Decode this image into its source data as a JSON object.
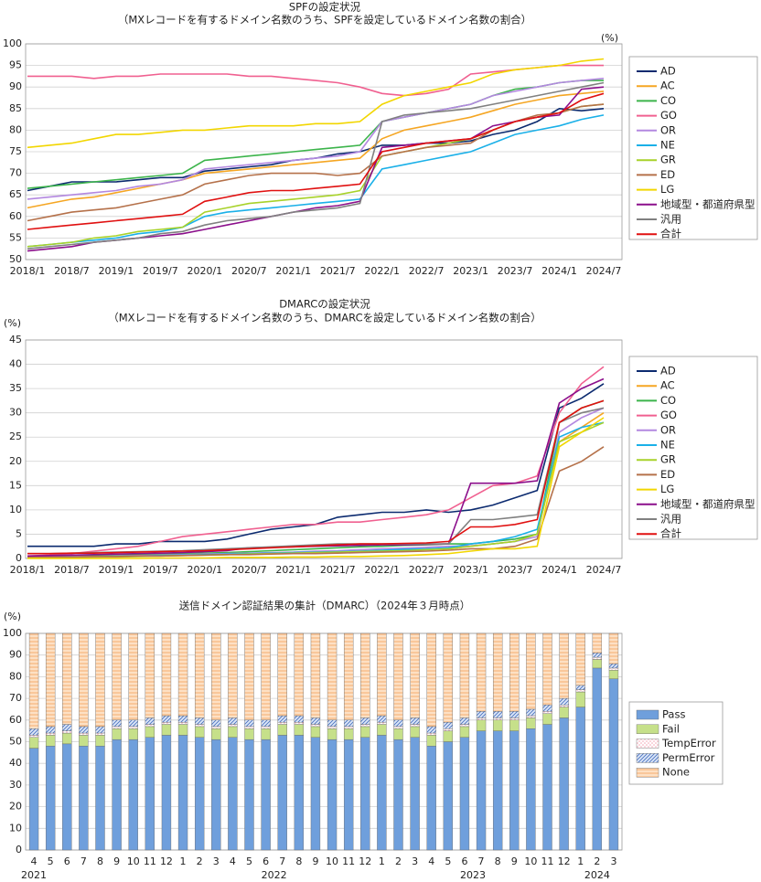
{
  "chart_data": [
    {
      "type": "line",
      "title": "SPFの設定状況",
      "subtitle": "（MXレコードを有するドメイン名数のうち、SPFを設定しているドメイン名数の割合）",
      "y_unit": "(%)",
      "categories": [
        "2018/1",
        null,
        "2018/7",
        null,
        "2019/1",
        null,
        "2019/7",
        null,
        "2020/1",
        null,
        "2020/7",
        null,
        "2021/1",
        null,
        "2021/7",
        null,
        "2022/1",
        null,
        "2022/7",
        null,
        "2023/1",
        null,
        "2023/7",
        null,
        "2024/1",
        null,
        "2024/7"
      ],
      "ylim": [
        50,
        100
      ],
      "yticks": [
        50,
        55,
        60,
        65,
        70,
        75,
        80,
        85,
        90,
        95,
        100
      ],
      "grid": true,
      "legend": "right",
      "series": [
        {
          "name": "AD",
          "color": "#0b2a6f",
          "values": [
            66,
            67,
            68,
            68,
            68,
            68.5,
            69,
            69,
            70.5,
            71,
            71.5,
            72,
            73,
            73.5,
            74.5,
            75,
            76.5,
            76.5,
            77,
            77,
            77.5,
            79,
            80,
            82,
            85,
            84.5,
            85
          ]
        },
        {
          "name": "AC",
          "color": "#f5a623",
          "values": [
            62,
            63,
            64,
            64.5,
            65.5,
            66.5,
            67.5,
            68.5,
            70,
            70.5,
            71,
            71.5,
            72,
            72.5,
            73,
            73.5,
            78,
            80,
            81,
            82,
            83,
            84.5,
            86,
            87,
            88,
            88.5,
            89
          ]
        },
        {
          "name": "CO",
          "color": "#3cb44b",
          "values": [
            66.5,
            67,
            67.5,
            68,
            68.5,
            69,
            69.5,
            70,
            73,
            73.5,
            74,
            74.5,
            75,
            75.5,
            76,
            76.5,
            82,
            83,
            84,
            85,
            86,
            88,
            89.5,
            90,
            91,
            91.5,
            91.5
          ]
        },
        {
          "name": "GO",
          "color": "#f06090",
          "values": [
            92.5,
            92.5,
            92.5,
            92,
            92.5,
            92.5,
            93,
            93,
            93,
            93,
            92.5,
            92.5,
            92,
            91.5,
            91,
            90,
            88.5,
            88,
            88.5,
            89.5,
            93,
            93.5,
            94,
            94.5,
            95,
            95,
            95
          ]
        },
        {
          "name": "OR",
          "color": "#b388e0",
          "values": [
            64,
            64.5,
            65,
            65.5,
            66,
            67,
            67.5,
            68.5,
            71,
            71.5,
            72,
            72.5,
            73,
            73.5,
            74,
            75,
            82,
            83,
            84,
            85,
            86,
            88,
            89,
            90,
            91,
            91.5,
            92
          ]
        },
        {
          "name": "NE",
          "color": "#1ab0e8",
          "values": [
            53,
            53.5,
            54,
            54.5,
            55,
            56,
            56.5,
            57.5,
            60,
            61,
            61.5,
            62,
            62.5,
            63,
            63.5,
            64,
            71,
            72,
            73,
            74,
            75,
            77,
            79,
            80,
            81,
            82.5,
            83.5
          ]
        },
        {
          "name": "GR",
          "color": "#a8d22a",
          "values": [
            53,
            53.5,
            54,
            55,
            55.5,
            56.5,
            57,
            57.5,
            61,
            62,
            63,
            63.5,
            64,
            64.5,
            65,
            66,
            74,
            75,
            76,
            77,
            78,
            80,
            82,
            83,
            84,
            85.5,
            86
          ]
        },
        {
          "name": "ED",
          "color": "#b5714a",
          "values": [
            59,
            60,
            61,
            61.5,
            62,
            63,
            64,
            65,
            67.5,
            68.5,
            69.5,
            70,
            70,
            70,
            69.5,
            70,
            74,
            75,
            76,
            76.5,
            77,
            80,
            82,
            83.5,
            84,
            85.5,
            86
          ]
        },
        {
          "name": "LG",
          "color": "#f2d600",
          "values": [
            76,
            76.5,
            77,
            78,
            79,
            79,
            79.5,
            80,
            80,
            80.5,
            81,
            81,
            81,
            81.5,
            81.5,
            82,
            86,
            88,
            89,
            90,
            91,
            93,
            94,
            94.5,
            95,
            96,
            96.5
          ]
        },
        {
          "name": "地域型・都道府県型",
          "color": "#8b0f8b",
          "values": [
            52,
            52.5,
            53,
            54,
            54.5,
            55,
            55.5,
            56,
            57,
            58,
            59,
            60,
            61,
            62,
            62.5,
            63.5,
            76,
            76.5,
            77,
            77.5,
            78,
            81,
            82,
            83,
            83.5,
            89.5,
            90
          ]
        },
        {
          "name": "汎用",
          "color": "#808080",
          "values": [
            52.5,
            53,
            53.5,
            54,
            54.5,
            55,
            56,
            56.5,
            58,
            59,
            59.5,
            60,
            61,
            61.5,
            62,
            63,
            82,
            83.5,
            84,
            84.5,
            85,
            86,
            87,
            88,
            89,
            90,
            91
          ]
        },
        {
          "name": "合計",
          "color": "#e01010",
          "values": [
            57,
            57.5,
            58,
            58.5,
            59,
            59.5,
            60,
            60.5,
            63.5,
            64.5,
            65.5,
            66,
            66,
            66.5,
            67,
            67.5,
            75,
            76,
            77,
            77.5,
            78,
            80,
            82,
            83,
            84,
            87,
            88.5
          ]
        }
      ]
    },
    {
      "type": "line",
      "title": "DMARCの設定状況",
      "subtitle": "（MXレコードを有するドメイン名数のうち、DMARCを設定しているドメイン名数の割合）",
      "y_unit": "(%)",
      "categories": [
        "2018/1",
        null,
        "2018/7",
        null,
        "2019/1",
        null,
        "2019/7",
        null,
        "2020/1",
        null,
        "2020/7",
        null,
        "2021/1",
        null,
        "2021/7",
        null,
        "2022/1",
        null,
        "2022/7",
        null,
        "2023/1",
        null,
        "2023/7",
        null,
        "2024/1",
        null,
        "2024/7"
      ],
      "ylim": [
        0,
        45
      ],
      "yticks": [
        0,
        5,
        10,
        15,
        20,
        25,
        30,
        35,
        40,
        45
      ],
      "grid": true,
      "legend": "right",
      "series": [
        {
          "name": "AD",
          "color": "#0b2a6f",
          "values": [
            2.5,
            2.5,
            2.5,
            2.5,
            3,
            3,
            3.5,
            3.5,
            3.5,
            4,
            5,
            6,
            6.5,
            7,
            8.5,
            9,
            9.5,
            9.5,
            10,
            9.5,
            10,
            11,
            12.5,
            14,
            31,
            33,
            36
          ]
        },
        {
          "name": "AC",
          "color": "#f5a623",
          "values": [
            0.5,
            0.5,
            0.5,
            0.5,
            0.6,
            0.6,
            0.7,
            0.7,
            0.8,
            0.8,
            0.9,
            1,
            1,
            1.2,
            1.3,
            1.5,
            1.6,
            1.8,
            2,
            2,
            2.5,
            3,
            3.5,
            5,
            24,
            27,
            30
          ]
        },
        {
          "name": "CO",
          "color": "#3cb44b",
          "values": [
            0.5,
            0.5,
            0.6,
            0.6,
            0.7,
            0.8,
            0.9,
            1,
            1.1,
            1.2,
            1.4,
            1.6,
            1.8,
            2,
            2.2,
            2.4,
            2.5,
            2.7,
            2.8,
            3,
            3,
            3.5,
            4,
            5,
            28,
            31,
            32.5
          ]
        },
        {
          "name": "GO",
          "color": "#f06090",
          "values": [
            0.5,
            0.7,
            1,
            1.5,
            2,
            2.5,
            3.5,
            4.5,
            5,
            5.5,
            6,
            6.5,
            7,
            7,
            7.5,
            7.5,
            8,
            8.5,
            9,
            10,
            12.5,
            15,
            15.5,
            17,
            30,
            36,
            39.5
          ]
        },
        {
          "name": "OR",
          "color": "#b388e0",
          "values": [
            0.3,
            0.3,
            0.4,
            0.4,
            0.5,
            0.6,
            0.7,
            0.8,
            0.9,
            1,
            1.1,
            1.2,
            1.3,
            1.5,
            1.6,
            1.8,
            2,
            2.1,
            2.3,
            2.5,
            2.6,
            3,
            3.5,
            4.5,
            26,
            29,
            31
          ]
        },
        {
          "name": "NE",
          "color": "#1ab0e8",
          "values": [
            0.2,
            0.2,
            0.3,
            0.3,
            0.4,
            0.5,
            0.6,
            0.7,
            0.8,
            0.9,
            1,
            1.1,
            1.2,
            1.3,
            1.4,
            1.5,
            1.7,
            1.9,
            2,
            2.2,
            3,
            3.5,
            4.5,
            6,
            25,
            27,
            28
          ]
        },
        {
          "name": "GR",
          "color": "#a8d22a",
          "values": [
            0.2,
            0.2,
            0.2,
            0.3,
            0.3,
            0.4,
            0.5,
            0.6,
            0.7,
            0.8,
            0.9,
            1,
            1.1,
            1.2,
            1.3,
            1.4,
            1.5,
            1.6,
            1.8,
            2,
            2.5,
            3,
            3.5,
            5,
            24,
            26,
            28
          ]
        },
        {
          "name": "ED",
          "color": "#b5714a",
          "values": [
            0.3,
            0.3,
            0.3,
            0.4,
            0.4,
            0.5,
            0.5,
            0.6,
            0.7,
            0.8,
            0.8,
            0.9,
            1,
            1,
            1.1,
            1.2,
            1.3,
            1.4,
            1.5,
            1.7,
            2,
            2,
            2.5,
            4,
            18,
            20,
            23
          ]
        },
        {
          "name": "LG",
          "color": "#f2d600",
          "values": [
            0,
            0,
            0,
            0,
            0,
            0,
            0.1,
            0.1,
            0.1,
            0.2,
            0.2,
            0.2,
            0.3,
            0.3,
            0.4,
            0.4,
            0.5,
            0.6,
            0.8,
            1,
            1.5,
            2,
            2,
            2.5,
            23,
            26,
            29
          ]
        },
        {
          "name": "地域型・都道府県型",
          "color": "#8b0f8b",
          "values": [
            0.5,
            0.6,
            0.7,
            0.8,
            0.9,
            1,
            1.1,
            1.2,
            1.4,
            1.6,
            2.2,
            2.3,
            2.4,
            2.5,
            2.6,
            2.7,
            2.8,
            2.8,
            2.9,
            3,
            15.5,
            15.5,
            15.5,
            16,
            32,
            35,
            37
          ]
        },
        {
          "name": "汎用",
          "color": "#808080",
          "values": [
            1,
            1,
            1.1,
            1.2,
            1.3,
            1.4,
            1.5,
            1.6,
            1.8,
            2,
            2.2,
            2.4,
            2.6,
            2.8,
            3,
            3,
            3,
            3,
            3,
            3,
            8,
            8,
            8.5,
            9,
            28,
            30,
            31
          ]
        },
        {
          "name": "合計",
          "color": "#e01010",
          "values": [
            1,
            1,
            1.1,
            1.1,
            1.2,
            1.3,
            1.4,
            1.5,
            1.6,
            1.8,
            2,
            2.2,
            2.4,
            2.6,
            2.8,
            3,
            3,
            3.1,
            3.2,
            3.5,
            6.5,
            6.5,
            7,
            8,
            28,
            31,
            32.5
          ]
        }
      ]
    },
    {
      "type": "stacked_bar",
      "title": "送信ドメイン認証結果の集計（DMARC）（2024年３月時点）",
      "y_unit": "(%)",
      "categories": [
        "4",
        "5",
        "6",
        "7",
        "8",
        "9",
        "10",
        "11",
        "12",
        "1",
        "2",
        "3",
        "4",
        "5",
        "6",
        "7",
        "8",
        "9",
        "10",
        "11",
        "12",
        "1",
        "2",
        "3",
        "4",
        "5",
        "6",
        "7",
        "8",
        "9",
        "10",
        "11",
        "12",
        "1",
        "2",
        "3"
      ],
      "category_groups": [
        "2021",
        "2022",
        "2023",
        "2024"
      ],
      "ylim": [
        0,
        100
      ],
      "yticks": [
        0,
        10,
        20,
        30,
        40,
        50,
        60,
        70,
        80,
        90,
        100
      ],
      "grid": true,
      "legend": "right",
      "series": [
        {
          "name": "Pass",
          "color": "#6f9fdc",
          "pattern": "solid",
          "values": [
            47,
            48,
            49,
            48,
            48,
            51,
            51,
            52,
            53,
            53,
            52,
            51,
            52,
            51,
            51,
            53,
            53,
            52,
            51,
            51,
            52,
            53,
            51,
            52,
            48,
            50,
            52,
            55,
            55,
            55,
            56,
            58,
            61,
            66,
            84,
            79
          ]
        },
        {
          "name": "Fail",
          "color": "#c6e08a",
          "pattern": "solid",
          "values": [
            5,
            5,
            5,
            5,
            5,
            5,
            5,
            5,
            5,
            5,
            5,
            5,
            5,
            5,
            5,
            5,
            5,
            5,
            5,
            5,
            5,
            5,
            5,
            5,
            5,
            5,
            5,
            5,
            5,
            5,
            5,
            5,
            5,
            7,
            4,
            4
          ]
        },
        {
          "name": "TempError",
          "color": "#f4a3b4",
          "pattern": "dots",
          "values": [
            1,
            1,
            1,
            1,
            1,
            1,
            1,
            1,
            1,
            1,
            1,
            1,
            1,
            1,
            1,
            1,
            1,
            1,
            1,
            1,
            1,
            1,
            1,
            1,
            1,
            1,
            1,
            1,
            1,
            1,
            1,
            1,
            1,
            1,
            1,
            1
          ]
        },
        {
          "name": "PermError",
          "color": "#4a72c0",
          "pattern": "diagonal",
          "values": [
            3,
            3,
            3,
            3,
            3,
            3,
            3,
            3,
            3,
            3,
            3,
            3,
            3,
            3,
            3,
            3,
            3,
            3,
            3,
            3,
            3,
            3,
            3,
            3,
            3,
            3,
            3,
            3,
            3,
            3,
            3,
            3,
            3,
            2,
            2,
            2
          ]
        },
        {
          "name": "None",
          "color": "#f5a868",
          "pattern": "horizontal",
          "values": [
            44,
            43,
            42,
            43,
            43,
            40,
            40,
            39,
            38,
            38,
            39,
            40,
            39,
            40,
            40,
            38,
            38,
            39,
            40,
            40,
            39,
            38,
            40,
            39,
            43,
            41,
            39,
            36,
            36,
            36,
            35,
            33,
            30,
            24,
            9,
            14
          ]
        }
      ]
    }
  ]
}
